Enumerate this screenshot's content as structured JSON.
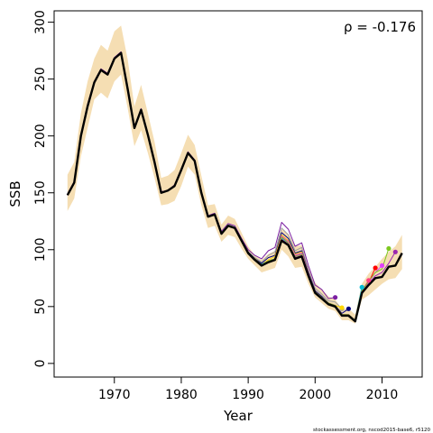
{
  "chart_data": {
    "type": "line",
    "xlabel": "Year",
    "ylabel": "SSB",
    "xlim": [
      1961,
      2016
    ],
    "ylim": [
      -12,
      310
    ],
    "x_ticks": [
      1970,
      1980,
      1990,
      2000,
      2010
    ],
    "y_ticks": [
      0,
      50,
      100,
      150,
      200,
      250,
      300
    ],
    "annotation": "ρ = -0.176",
    "footnote": "stockassessment.org, nscod2015-base6, r5120",
    "band_color": "#f5deb3",
    "confidence_band": {
      "x": [
        1963,
        1964,
        1965,
        1966,
        1967,
        1968,
        1969,
        1970,
        1971,
        1972,
        1973,
        1974,
        1975,
        1976,
        1977,
        1978,
        1979,
        1980,
        1981,
        1982,
        1983,
        1984,
        1985,
        1986,
        1987,
        1988,
        1989,
        1990,
        1991,
        1992,
        1993,
        1994,
        1995,
        1996,
        1997,
        1998,
        1999,
        2000,
        2001,
        2002,
        2003,
        2004,
        2005,
        2006,
        2007,
        2008,
        2009,
        2010,
        2011,
        2012,
        2013
      ],
      "lower": [
        134,
        145,
        182,
        207,
        232,
        238,
        233,
        248,
        254,
        224,
        191,
        205,
        185,
        163,
        139,
        140,
        143,
        156,
        173,
        166,
        139,
        119,
        121,
        107,
        113,
        111,
        101,
        92,
        86,
        80,
        82,
        84,
        100,
        94,
        84,
        85,
        70,
        58,
        53,
        48,
        46,
        38,
        38,
        35,
        56,
        60,
        65,
        70,
        74,
        75,
        83
      ],
      "upper": [
        166,
        177,
        220,
        248,
        268,
        280,
        275,
        292,
        297,
        267,
        226,
        245,
        220,
        195,
        163,
        165,
        170,
        185,
        201,
        192,
        165,
        139,
        140,
        122,
        130,
        127,
        115,
        103,
        95,
        91,
        96,
        99,
        118,
        114,
        103,
        104,
        85,
        71,
        65,
        59,
        56,
        48,
        48,
        43,
        70,
        79,
        85,
        92,
        98,
        103,
        113
      ]
    },
    "series": [
      {
        "color": "#000000",
        "x": [
          1963,
          1964,
          1965,
          1966,
          1967,
          1968,
          1969,
          1970,
          1971,
          1972,
          1973,
          1974,
          1975,
          1976,
          1977,
          1978,
          1979,
          1980,
          1981,
          1982,
          1983,
          1984,
          1985,
          1986,
          1987,
          1988,
          1989,
          1990,
          1991,
          1992,
          1993,
          1994,
          1995,
          1996,
          1997,
          1998,
          1999,
          2000,
          2001,
          2002,
          2003,
          2004,
          2005,
          2006,
          2007,
          2008,
          2009,
          2010,
          2011,
          2012,
          2013
        ],
        "values": [
          148,
          159,
          200,
          226,
          247,
          258,
          254,
          268,
          273,
          241,
          207,
          223,
          201,
          177,
          150,
          152,
          156,
          170,
          185,
          178,
          150,
          129,
          131,
          114,
          121,
          119,
          108,
          97,
          91,
          86,
          89,
          91,
          108,
          104,
          92,
          94,
          77,
          62,
          57,
          52,
          50,
          42,
          42,
          37,
          62,
          69,
          75,
          76,
          85,
          86,
          97
        ]
      },
      {
        "color": "#7b1fa2",
        "x": [
          1963,
          1964,
          1965,
          1966,
          1967,
          1968,
          1969,
          1970,
          1971,
          1972,
          1973,
          1974,
          1975,
          1976,
          1977,
          1978,
          1979,
          1980,
          1981,
          1982,
          1983,
          1984,
          1985,
          1986,
          1987,
          1988,
          1989,
          1990,
          1991,
          1992,
          1993,
          1994,
          1995,
          1996,
          1997,
          1998,
          1999,
          2000,
          2001,
          2002,
          2003
        ],
        "values": [
          149,
          160,
          201,
          228,
          248,
          259,
          255,
          269,
          274,
          242,
          208,
          224,
          202,
          178,
          151,
          152,
          157,
          171,
          186,
          179,
          151,
          130,
          132,
          116,
          123,
          121,
          110,
          100,
          95,
          92,
          99,
          102,
          124,
          118,
          103,
          106,
          86,
          69,
          65,
          57,
          58
        ]
      },
      {
        "color": "#9e9e9e",
        "x": [
          1963,
          1964,
          1965,
          1966,
          1967,
          1968,
          1969,
          1970,
          1971,
          1972,
          1973,
          1974,
          1975,
          1976,
          1977,
          1978,
          1979,
          1980,
          1981,
          1982,
          1983,
          1984,
          1985,
          1986,
          1987,
          1988,
          1989,
          1990,
          1991,
          1992,
          1993,
          1994,
          1995,
          1996,
          1997,
          1998,
          1999,
          2000,
          2001,
          2002,
          2003,
          2004
        ],
        "values": [
          148,
          159,
          200,
          227,
          247,
          258,
          254,
          268,
          273,
          241,
          207,
          223,
          201,
          177,
          150,
          152,
          156,
          170,
          185,
          178,
          150,
          130,
          131,
          115,
          122,
          120,
          109,
          98,
          93,
          89,
          95,
          98,
          119,
          113,
          99,
          102,
          82,
          66,
          61,
          55,
          54,
          48
        ]
      },
      {
        "color": "#000080",
        "x": [
          1963,
          1964,
          1965,
          1966,
          1967,
          1968,
          1969,
          1970,
          1971,
          1972,
          1973,
          1974,
          1975,
          1976,
          1977,
          1978,
          1979,
          1980,
          1981,
          1982,
          1983,
          1984,
          1985,
          1986,
          1987,
          1988,
          1989,
          1990,
          1991,
          1992,
          1993,
          1994,
          1995,
          1996,
          1997,
          1998,
          1999,
          2000,
          2001,
          2002,
          2003,
          2004,
          2005
        ],
        "values": [
          148,
          159,
          200,
          226,
          247,
          258,
          254,
          268,
          273,
          241,
          207,
          223,
          201,
          177,
          150,
          152,
          156,
          170,
          185,
          178,
          150,
          129,
          131,
          114,
          121,
          119,
          108,
          98,
          92,
          88,
          93,
          95,
          115,
          110,
          97,
          99,
          80,
          64,
          59,
          53,
          51,
          44,
          48
        ]
      },
      {
        "color": "#ffd700",
        "x": [
          1963,
          1964,
          1965,
          1966,
          1967,
          1968,
          1969,
          1970,
          1971,
          1972,
          1973,
          1974,
          1975,
          1976,
          1977,
          1978,
          1979,
          1980,
          1981,
          1982,
          1983,
          1984,
          1985,
          1986,
          1987,
          1988,
          1989,
          1990,
          1991,
          1992,
          1993,
          1994,
          1995,
          1996,
          1997,
          1998,
          1999,
          2000,
          2001,
          2002,
          2003,
          2004
        ],
        "values": [
          148,
          159,
          200,
          226,
          247,
          258,
          254,
          268,
          273,
          241,
          207,
          223,
          201,
          177,
          150,
          152,
          156,
          170,
          185,
          178,
          150,
          129,
          131,
          114,
          121,
          119,
          108,
          97,
          92,
          87,
          91,
          94,
          113,
          108,
          96,
          98,
          79,
          63,
          58,
          52,
          51,
          49
        ]
      },
      {
        "color": "#00bcd4",
        "x": [
          1963,
          1964,
          1965,
          1966,
          1967,
          1968,
          1969,
          1970,
          1971,
          1972,
          1973,
          1974,
          1975,
          1976,
          1977,
          1978,
          1979,
          1980,
          1981,
          1982,
          1983,
          1984,
          1985,
          1986,
          1987,
          1988,
          1989,
          1990,
          1991,
          1992,
          1993,
          1994,
          1995,
          1996,
          1997,
          1998,
          1999,
          2000,
          2001,
          2002,
          2003,
          2004,
          2005,
          2006,
          2007
        ],
        "values": [
          148,
          159,
          200,
          226,
          247,
          258,
          254,
          268,
          273,
          241,
          207,
          223,
          201,
          177,
          150,
          152,
          156,
          170,
          185,
          178,
          150,
          129,
          131,
          114,
          121,
          119,
          108,
          97,
          91,
          87,
          90,
          92,
          110,
          106,
          94,
          96,
          78,
          63,
          58,
          53,
          51,
          43,
          43,
          38,
          67
        ]
      },
      {
        "color": "#ff4081",
        "x": [
          1963,
          1964,
          1965,
          1966,
          1967,
          1968,
          1969,
          1970,
          1971,
          1972,
          1973,
          1974,
          1975,
          1976,
          1977,
          1978,
          1979,
          1980,
          1981,
          1982,
          1983,
          1984,
          1985,
          1986,
          1987,
          1988,
          1989,
          1990,
          1991,
          1992,
          1993,
          1994,
          1995,
          1996,
          1997,
          1998,
          1999,
          2000,
          2001,
          2002,
          2003,
          2004,
          2005,
          2006,
          2007,
          2008
        ],
        "values": [
          148,
          159,
          200,
          226,
          247,
          258,
          254,
          268,
          273,
          241,
          207,
          223,
          201,
          177,
          150,
          152,
          156,
          170,
          185,
          178,
          150,
          129,
          131,
          114,
          121,
          119,
          108,
          97,
          91,
          86,
          90,
          92,
          111,
          106,
          94,
          96,
          78,
          63,
          58,
          53,
          51,
          43,
          43,
          38,
          64,
          73
        ]
      },
      {
        "color": "#ff0000",
        "x": [
          1963,
          1964,
          1965,
          1966,
          1967,
          1968,
          1969,
          1970,
          1971,
          1972,
          1973,
          1974,
          1975,
          1976,
          1977,
          1978,
          1979,
          1980,
          1981,
          1982,
          1983,
          1984,
          1985,
          1986,
          1987,
          1988,
          1989,
          1990,
          1991,
          1992,
          1993,
          1994,
          1995,
          1996,
          1997,
          1998,
          1999,
          2000,
          2001,
          2002,
          2003,
          2004,
          2005,
          2006,
          2007,
          2008,
          2009
        ],
        "values": [
          148,
          159,
          200,
          226,
          247,
          258,
          254,
          268,
          273,
          241,
          207,
          223,
          201,
          177,
          150,
          152,
          156,
          170,
          185,
          178,
          150,
          129,
          131,
          114,
          121,
          119,
          108,
          97,
          91,
          86,
          90,
          92,
          112,
          107,
          95,
          97,
          79,
          63,
          58,
          53,
          51,
          43,
          43,
          38,
          64,
          71,
          84
        ]
      },
      {
        "color": "#e040fb",
        "x": [
          1963,
          1964,
          1965,
          1966,
          1967,
          1968,
          1969,
          1970,
          1971,
          1972,
          1973,
          1974,
          1975,
          1976,
          1977,
          1978,
          1979,
          1980,
          1981,
          1982,
          1983,
          1984,
          1985,
          1986,
          1987,
          1988,
          1989,
          1990,
          1991,
          1992,
          1993,
          1994,
          1995,
          1996,
          1997,
          1998,
          1999,
          2000,
          2001,
          2002,
          2003,
          2004,
          2005,
          2006,
          2007,
          2008,
          2009,
          2010
        ],
        "values": [
          148,
          159,
          200,
          226,
          247,
          258,
          254,
          268,
          273,
          241,
          207,
          223,
          201,
          177,
          150,
          152,
          156,
          170,
          185,
          178,
          150,
          129,
          131,
          114,
          121,
          119,
          108,
          97,
          91,
          86,
          90,
          92,
          112,
          107,
          95,
          97,
          79,
          63,
          58,
          53,
          51,
          43,
          43,
          38,
          64,
          71,
          80,
          86
        ]
      },
      {
        "color": "#7ec820",
        "x": [
          1963,
          1964,
          1965,
          1966,
          1967,
          1968,
          1969,
          1970,
          1971,
          1972,
          1973,
          1974,
          1975,
          1976,
          1977,
          1978,
          1979,
          1980,
          1981,
          1982,
          1983,
          1984,
          1985,
          1986,
          1987,
          1988,
          1989,
          1990,
          1991,
          1992,
          1993,
          1994,
          1995,
          1996,
          1997,
          1998,
          1999,
          2000,
          2001,
          2002,
          2003,
          2004,
          2005,
          2006,
          2007,
          2008,
          2009,
          2010,
          2011
        ],
        "values": [
          148,
          159,
          200,
          226,
          247,
          258,
          254,
          268,
          273,
          241,
          207,
          223,
          201,
          177,
          150,
          152,
          156,
          170,
          185,
          178,
          150,
          129,
          131,
          114,
          121,
          119,
          108,
          97,
          91,
          86,
          90,
          92,
          111,
          106,
          94,
          96,
          78,
          63,
          58,
          53,
          51,
          43,
          43,
          38,
          64,
          72,
          80,
          83,
          101
        ]
      },
      {
        "color": "#9c27b0",
        "x": [
          1963,
          1964,
          1965,
          1966,
          1967,
          1968,
          1969,
          1970,
          1971,
          1972,
          1973,
          1974,
          1975,
          1976,
          1977,
          1978,
          1979,
          1980,
          1981,
          1982,
          1983,
          1984,
          1985,
          1986,
          1987,
          1988,
          1989,
          1990,
          1991,
          1992,
          1993,
          1994,
          1995,
          1996,
          1997,
          1998,
          1999,
          2000,
          2001,
          2002,
          2003,
          2004,
          2005,
          2006,
          2007,
          2008,
          2009,
          2010,
          2011,
          2012
        ],
        "values": [
          148,
          159,
          200,
          226,
          247,
          258,
          254,
          268,
          273,
          241,
          207,
          223,
          201,
          177,
          150,
          152,
          156,
          170,
          185,
          178,
          150,
          129,
          131,
          114,
          121,
          119,
          108,
          97,
          91,
          86,
          89,
          91,
          109,
          105,
          93,
          95,
          77,
          62,
          57,
          52,
          50,
          42,
          42,
          37,
          63,
          70,
          77,
          80,
          88,
          98
        ]
      }
    ]
  }
}
